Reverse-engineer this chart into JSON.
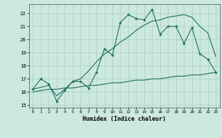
{
  "xlabel": "Humidex (Indice chaleur)",
  "xlim": [
    -0.5,
    23.5
  ],
  "ylim": [
    14.8,
    22.7
  ],
  "yticks": [
    15,
    16,
    17,
    18,
    19,
    20,
    21,
    22
  ],
  "xticks": [
    0,
    1,
    2,
    3,
    4,
    5,
    6,
    7,
    8,
    9,
    10,
    11,
    12,
    13,
    14,
    15,
    16,
    17,
    18,
    19,
    20,
    21,
    22,
    23
  ],
  "bg_color": "#cce8df",
  "line_color": "#1a6b5a",
  "grid_color": "#a8cfc4",
  "line1_x": [
    0,
    1,
    2,
    3,
    4,
    5,
    6,
    7,
    8,
    9,
    10,
    11,
    12,
    13,
    14,
    15,
    16,
    17,
    18,
    19,
    20,
    21,
    22,
    23
  ],
  "line1_y": [
    16.2,
    17.0,
    16.6,
    15.3,
    16.1,
    16.8,
    16.8,
    16.3,
    17.5,
    19.3,
    18.8,
    21.3,
    21.9,
    21.6,
    21.5,
    22.3,
    20.4,
    21.0,
    21.0,
    19.7,
    20.9,
    18.9,
    18.5,
    17.5
  ],
  "line2_x": [
    0,
    2,
    3,
    4,
    5,
    6,
    7,
    8,
    9,
    10,
    11,
    12,
    13,
    14,
    15,
    16,
    17,
    18,
    19,
    20,
    21,
    22,
    23
  ],
  "line2_y": [
    16.2,
    16.5,
    15.7,
    16.2,
    16.8,
    17.0,
    17.6,
    18.3,
    18.9,
    19.3,
    19.8,
    20.2,
    20.7,
    21.1,
    21.4,
    21.5,
    21.7,
    21.8,
    21.9,
    21.7,
    21.0,
    20.5,
    18.7
  ],
  "line3_x": [
    0,
    1,
    2,
    3,
    4,
    5,
    6,
    7,
    8,
    9,
    10,
    11,
    12,
    13,
    14,
    15,
    16,
    17,
    18,
    19,
    20,
    21,
    22,
    23
  ],
  "line3_y": [
    16.0,
    16.1,
    16.2,
    16.2,
    16.3,
    16.3,
    16.4,
    16.5,
    16.5,
    16.6,
    16.7,
    16.7,
    16.8,
    16.9,
    16.9,
    17.0,
    17.0,
    17.1,
    17.2,
    17.2,
    17.3,
    17.3,
    17.4,
    17.5
  ]
}
